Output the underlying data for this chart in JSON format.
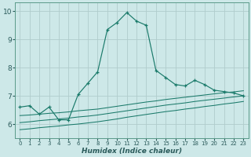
{
  "xlabel": "Humidex (Indice chaleur)",
  "bg_color": "#cde8e8",
  "grid_color": "#b0cccc",
  "line_color": "#1a7a6a",
  "xlim": [
    -0.5,
    23.5
  ],
  "ylim": [
    5.5,
    10.3
  ],
  "xticks": [
    0,
    1,
    2,
    3,
    4,
    5,
    6,
    7,
    8,
    9,
    10,
    11,
    12,
    13,
    14,
    15,
    16,
    17,
    18,
    19,
    20,
    21,
    22,
    23
  ],
  "yticks": [
    6,
    7,
    8,
    9,
    10
  ],
  "series1_x": [
    0,
    1,
    2,
    3,
    4,
    5,
    6,
    7,
    8,
    9,
    10,
    11,
    12,
    13,
    14,
    15,
    16,
    17,
    18,
    19,
    20,
    21,
    22,
    23
  ],
  "series1_y": [
    6.6,
    6.65,
    6.35,
    6.6,
    6.15,
    6.15,
    7.05,
    7.45,
    7.85,
    9.35,
    9.6,
    9.95,
    9.65,
    9.5,
    7.9,
    7.65,
    7.4,
    7.35,
    7.55,
    7.4,
    7.2,
    7.15,
    7.1,
    7.0
  ],
  "series2_x": [
    0,
    1,
    2,
    3,
    4,
    5,
    6,
    7,
    8,
    9,
    10,
    11,
    12,
    13,
    14,
    15,
    16,
    17,
    18,
    19,
    20,
    21,
    22,
    23
  ],
  "series2_y": [
    6.3,
    6.32,
    6.35,
    6.38,
    6.4,
    6.43,
    6.47,
    6.5,
    6.53,
    6.58,
    6.63,
    6.68,
    6.73,
    6.78,
    6.82,
    6.87,
    6.91,
    6.95,
    6.99,
    7.03,
    7.07,
    7.11,
    7.14,
    7.18
  ],
  "series3_x": [
    0,
    1,
    2,
    3,
    4,
    5,
    6,
    7,
    8,
    9,
    10,
    11,
    12,
    13,
    14,
    15,
    16,
    17,
    18,
    19,
    20,
    21,
    22,
    23
  ],
  "series3_y": [
    6.05,
    6.08,
    6.12,
    6.15,
    6.18,
    6.21,
    6.25,
    6.28,
    6.32,
    6.37,
    6.42,
    6.47,
    6.52,
    6.57,
    6.62,
    6.67,
    6.71,
    6.75,
    6.8,
    6.84,
    6.88,
    6.92,
    6.96,
    7.0
  ],
  "series4_x": [
    0,
    1,
    2,
    3,
    4,
    5,
    6,
    7,
    8,
    9,
    10,
    11,
    12,
    13,
    14,
    15,
    16,
    17,
    18,
    19,
    20,
    21,
    22,
    23
  ],
  "series4_y": [
    5.8,
    5.83,
    5.87,
    5.9,
    5.93,
    5.97,
    6.0,
    6.04,
    6.08,
    6.13,
    6.18,
    6.24,
    6.29,
    6.34,
    6.39,
    6.44,
    6.48,
    6.53,
    6.57,
    6.62,
    6.66,
    6.71,
    6.75,
    6.8
  ]
}
